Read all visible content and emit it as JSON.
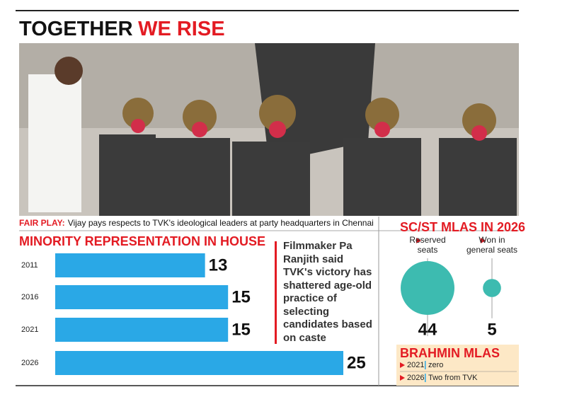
{
  "header": {
    "title_part1": "TOGETHER",
    "title_part2": "WE RISE"
  },
  "photo_caption": {
    "label": "FAIR PLAY:",
    "text": "Vijay pays respects to TVK's ideological leaders at party headquarters in Chennai"
  },
  "chart_data": [
    {
      "type": "bar",
      "title": "MINORITY REPRESENTATION IN HOUSE",
      "categories": [
        "2011",
        "2016",
        "2021",
        "2026"
      ],
      "values": [
        13,
        15,
        15,
        25
      ],
      "color": "#2aa8e6"
    },
    {
      "type": "bubble",
      "title": "SC/ST MLAS IN 2026",
      "categories": [
        "Reserved seats",
        "Won in general seats"
      ],
      "values": [
        44,
        5
      ],
      "color": "#3dbbb0"
    }
  ],
  "quote": {
    "text": "Filmmaker Pa Ranjith said TVK's victory has shattered age-old practice of selecting candidates based on caste"
  },
  "brahmin_mlas": {
    "title": "BRAHMIN MLAS",
    "rows": [
      [
        "2021",
        "zero"
      ],
      [
        "2026",
        "Two from TVK"
      ]
    ]
  }
}
